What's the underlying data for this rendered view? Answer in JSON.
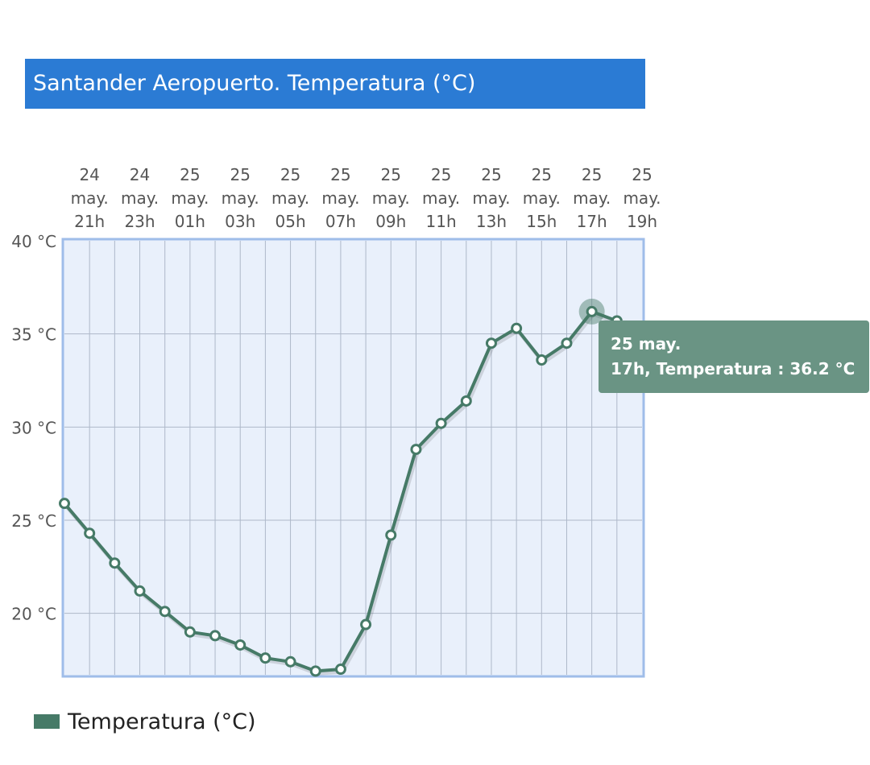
{
  "colors": {
    "title_background": "#2b7bd4",
    "series": "#467a67",
    "plot_background": "#e9f0fb",
    "plot_border": "#9fbde9",
    "tooltip_background": "#6a9484"
  },
  "chart_data": {
    "type": "line",
    "title": "Santander Aeropuerto. Temperatura (°C)",
    "xlabel": "",
    "ylabel": "",
    "x_tick_labels": [
      [
        "24",
        "may.",
        "21h"
      ],
      [
        "24",
        "may.",
        "23h"
      ],
      [
        "25",
        "may.",
        "01h"
      ],
      [
        "25",
        "may.",
        "03h"
      ],
      [
        "25",
        "may.",
        "05h"
      ],
      [
        "25",
        "may.",
        "07h"
      ],
      [
        "25",
        "may.",
        "09h"
      ],
      [
        "25",
        "may.",
        "11h"
      ],
      [
        "25",
        "may.",
        "13h"
      ],
      [
        "25",
        "may.",
        "15h"
      ],
      [
        "25",
        "may.",
        "17h"
      ],
      [
        "25",
        "may.",
        "19h"
      ]
    ],
    "categories": [
      "24 may. 20h",
      "24 may. 21h",
      "24 may. 22h",
      "24 may. 23h",
      "25 may. 00h",
      "25 may. 01h",
      "25 may. 02h",
      "25 may. 03h",
      "25 may. 04h",
      "25 may. 05h",
      "25 may. 06h",
      "25 may. 07h",
      "25 may. 08h",
      "25 may. 09h",
      "25 may. 10h",
      "25 may. 11h",
      "25 may. 12h",
      "25 may. 13h",
      "25 may. 14h",
      "25 may. 15h",
      "25 may. 16h",
      "25 may. 17h",
      "25 may. 18h",
      "25 may. 19h"
    ],
    "series": [
      {
        "name": "Temperatura (°C)",
        "values": [
          25.9,
          24.3,
          22.7,
          21.2,
          20.1,
          19.0,
          18.8,
          18.3,
          17.6,
          17.4,
          16.9,
          17.0,
          19.4,
          24.2,
          28.8,
          30.2,
          31.4,
          34.5,
          35.3,
          33.6,
          34.5,
          36.2,
          35.7,
          35.3
        ]
      }
    ],
    "y_tick_labels": [
      "40 °C",
      "35 °C",
      "30 °C",
      "25 °C",
      "20 °C"
    ],
    "y_ticks": [
      40,
      35,
      30,
      25,
      20
    ],
    "ylim": [
      16.7,
      40
    ],
    "grid": true,
    "legend": "bottom-left",
    "highlighted_point_index": 21,
    "tooltip": {
      "line1": "25 may.",
      "line2": "17h, Temperatura : 36.2 °C"
    }
  }
}
